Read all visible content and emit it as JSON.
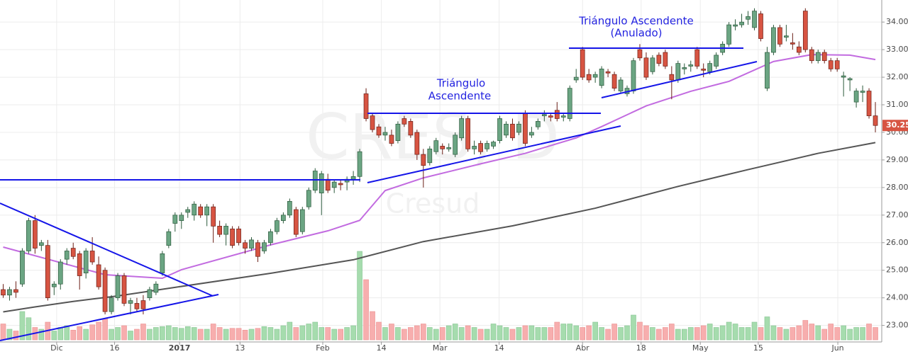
{
  "chart_data": {
    "type": "candlestick",
    "watermark": {
      "symbol": "CRES, D",
      "name": "Cresud"
    },
    "annotations": [
      [
        "Triángulo",
        "Ascendente"
      ],
      [
        "Triángulo Ascendente",
        "(Anulado)"
      ]
    ],
    "ylim": [
      22.4,
      34.8
    ],
    "yticks": [
      {
        "value": 23,
        "label": "23.00"
      },
      {
        "value": 24,
        "label": "24.00"
      },
      {
        "value": 25,
        "label": "25.00"
      },
      {
        "value": 26,
        "label": "26.00"
      },
      {
        "value": 27,
        "label": "27.00"
      },
      {
        "value": 28,
        "label": "28.00"
      },
      {
        "value": 29,
        "label": "29.00"
      },
      {
        "value": 30,
        "label": "30.00"
      },
      {
        "value": 31,
        "label": "31.00"
      },
      {
        "value": 32,
        "label": "32.00"
      },
      {
        "value": 33,
        "label": "33.00"
      },
      {
        "value": 34,
        "label": "34.00"
      }
    ],
    "xlim": [
      -0.5,
      138
    ],
    "xticks": [
      {
        "value": 8.4,
        "label": "Dic"
      },
      {
        "value": 17.5,
        "label": "16"
      },
      {
        "value": 27.7,
        "label": "2017"
      },
      {
        "value": 37.2,
        "label": "13"
      },
      {
        "value": 50.2,
        "label": "Feb"
      },
      {
        "value": 59.4,
        "label": "14"
      },
      {
        "value": 68.6,
        "label": "Mar"
      },
      {
        "value": 77.9,
        "label": "14"
      },
      {
        "value": 91,
        "label": "Abr"
      },
      {
        "value": 100.2,
        "label": "18"
      },
      {
        "value": 109.5,
        "label": "May"
      },
      {
        "value": 118.6,
        "label": "15"
      },
      {
        "value": 131.1,
        "label": "Jun"
      }
    ],
    "grid": true,
    "up_color": "#6ba583",
    "down_color": "#d75442",
    "last_price": 30.25,
    "ohlc": [
      [
        24.3,
        24.5,
        24.0,
        24.1
      ],
      [
        24.1,
        24.4,
        23.9,
        24.3
      ],
      [
        24.3,
        24.6,
        24.0,
        24.2
      ],
      [
        24.5,
        25.8,
        24.4,
        25.7
      ],
      [
        25.7,
        26.9,
        25.6,
        26.8
      ],
      [
        26.8,
        27.0,
        25.6,
        25.8
      ],
      [
        25.9,
        26.1,
        25.7,
        26.0
      ],
      [
        25.9,
        26.1,
        23.9,
        24.0
      ],
      [
        24.4,
        24.6,
        24.1,
        24.5
      ],
      [
        24.5,
        25.4,
        24.3,
        25.3
      ],
      [
        25.4,
        25.8,
        25.2,
        25.7
      ],
      [
        25.8,
        26.0,
        25.4,
        25.5
      ],
      [
        25.6,
        25.7,
        24.3,
        24.8
      ],
      [
        24.9,
        25.8,
        24.7,
        25.7
      ],
      [
        25.7,
        26.2,
        25.2,
        25.3
      ],
      [
        25.2,
        25.5,
        24.3,
        24.4
      ],
      [
        25.0,
        25.1,
        23.4,
        23.5
      ],
      [
        23.5,
        24.1,
        23.4,
        24.0
      ],
      [
        24.0,
        24.9,
        23.9,
        24.8
      ],
      [
        24.8,
        24.9,
        23.7,
        23.8
      ],
      [
        23.8,
        24.0,
        23.4,
        23.9
      ],
      [
        23.8,
        24.0,
        23.5,
        23.6
      ],
      [
        23.9,
        24.1,
        23.4,
        23.6
      ],
      [
        24.0,
        24.4,
        23.9,
        24.3
      ],
      [
        24.2,
        24.6,
        24.1,
        24.5
      ],
      [
        24.9,
        25.7,
        24.8,
        25.6
      ],
      [
        25.9,
        26.5,
        25.8,
        26.4
      ],
      [
        26.7,
        27.1,
        26.4,
        27.0
      ],
      [
        26.8,
        27.1,
        26.5,
        27.0
      ],
      [
        27.1,
        27.3,
        26.9,
        27.2
      ],
      [
        27.0,
        27.5,
        26.8,
        27.4
      ],
      [
        27.3,
        27.4,
        26.9,
        27.0
      ],
      [
        27.0,
        27.4,
        26.6,
        27.3
      ],
      [
        27.3,
        27.4,
        26.0,
        26.6
      ],
      [
        26.6,
        26.8,
        26.2,
        26.3
      ],
      [
        26.3,
        26.7,
        25.9,
        26.6
      ],
      [
        26.5,
        26.6,
        25.8,
        25.9
      ],
      [
        26.5,
        26.6,
        25.9,
        26.0
      ],
      [
        26.0,
        26.1,
        25.6,
        25.8
      ],
      [
        25.8,
        26.2,
        25.7,
        26.1
      ],
      [
        26.0,
        26.1,
        25.3,
        25.5
      ],
      [
        25.7,
        26.1,
        25.6,
        26.0
      ],
      [
        26.0,
        26.5,
        25.9,
        26.4
      ],
      [
        26.4,
        26.9,
        26.3,
        26.8
      ],
      [
        26.8,
        27.1,
        26.7,
        27.0
      ],
      [
        27.0,
        27.6,
        26.9,
        27.5
      ],
      [
        27.2,
        27.3,
        26.2,
        26.3
      ],
      [
        26.4,
        27.3,
        26.3,
        27.2
      ],
      [
        27.3,
        28.0,
        27.2,
        27.9
      ],
      [
        27.9,
        28.7,
        27.8,
        28.6
      ],
      [
        27.8,
        28.6,
        27.0,
        28.5
      ],
      [
        28.3,
        28.5,
        27.8,
        27.9
      ],
      [
        28.0,
        28.3,
        27.8,
        28.2
      ],
      [
        28.15,
        28.3,
        27.9,
        28.1
      ],
      [
        28.2,
        28.4,
        27.9,
        28.3
      ],
      [
        28.3,
        28.6,
        28.1,
        28.4
      ],
      [
        28.4,
        29.4,
        28.2,
        29.3
      ],
      [
        31.4,
        31.6,
        30.4,
        30.5
      ],
      [
        30.6,
        30.7,
        30.0,
        30.1
      ],
      [
        30.2,
        30.3,
        29.8,
        29.9
      ],
      [
        29.9,
        30.2,
        29.7,
        30.0
      ],
      [
        29.9,
        30.1,
        29.5,
        29.6
      ],
      [
        29.7,
        30.4,
        29.6,
        30.3
      ],
      [
        30.5,
        30.6,
        30.2,
        30.3
      ],
      [
        30.4,
        30.5,
        29.8,
        29.9
      ],
      [
        30.0,
        30.1,
        29.0,
        29.2
      ],
      [
        29.2,
        29.4,
        28.0,
        28.8
      ],
      [
        28.9,
        29.5,
        28.8,
        29.4
      ],
      [
        29.3,
        29.8,
        29.2,
        29.7
      ],
      [
        29.5,
        29.6,
        29.2,
        29.4
      ],
      [
        29.4,
        29.6,
        29.3,
        29.45
      ],
      [
        29.2,
        30.0,
        29.1,
        29.9
      ],
      [
        29.8,
        30.6,
        29.7,
        30.5
      ],
      [
        30.5,
        30.6,
        29.3,
        29.4
      ],
      [
        29.4,
        29.7,
        29.2,
        29.5
      ],
      [
        29.6,
        29.7,
        29.2,
        29.3
      ],
      [
        29.4,
        29.7,
        29.3,
        29.6
      ],
      [
        29.5,
        29.7,
        29.4,
        29.65
      ],
      [
        29.7,
        30.6,
        29.6,
        30.5
      ],
      [
        29.9,
        30.4,
        29.8,
        30.3
      ],
      [
        30.3,
        30.5,
        29.7,
        29.8
      ],
      [
        30.0,
        30.4,
        29.9,
        30.3
      ],
      [
        30.7,
        30.8,
        29.5,
        29.6
      ],
      [
        29.9,
        30.2,
        29.8,
        30.0
      ],
      [
        30.2,
        30.5,
        30.1,
        30.4
      ],
      [
        30.6,
        30.8,
        30.4,
        30.65
      ],
      [
        30.6,
        30.7,
        30.4,
        30.55
      ],
      [
        30.8,
        31.1,
        30.4,
        30.5
      ],
      [
        30.55,
        30.7,
        30.4,
        30.6
      ],
      [
        30.5,
        31.7,
        30.4,
        31.6
      ],
      [
        31.9,
        32.3,
        31.8,
        32.0
      ],
      [
        33.0,
        33.1,
        31.9,
        32.0
      ],
      [
        32.1,
        32.3,
        31.8,
        31.9
      ],
      [
        32.0,
        32.2,
        31.8,
        32.1
      ],
      [
        31.7,
        32.4,
        31.6,
        32.3
      ],
      [
        32.2,
        32.3,
        32.0,
        32.15
      ],
      [
        32.1,
        32.2,
        31.5,
        31.6
      ],
      [
        31.5,
        32.0,
        31.4,
        31.9
      ],
      [
        31.4,
        31.7,
        31.3,
        31.6
      ],
      [
        31.5,
        32.7,
        31.4,
        32.6
      ],
      [
        33.0,
        33.2,
        32.6,
        32.7
      ],
      [
        32.7,
        32.9,
        31.9,
        32.0
      ],
      [
        32.2,
        32.8,
        32.1,
        32.7
      ],
      [
        32.8,
        32.9,
        32.4,
        32.5
      ],
      [
        32.9,
        33.0,
        32.3,
        32.4
      ],
      [
        32.1,
        32.4,
        31.2,
        31.9
      ],
      [
        31.9,
        32.6,
        31.8,
        32.5
      ],
      [
        32.3,
        32.5,
        32.1,
        32.35
      ],
      [
        32.4,
        32.6,
        32.2,
        32.45
      ],
      [
        33.0,
        33.1,
        32.3,
        32.4
      ],
      [
        32.3,
        32.5,
        32.0,
        32.25
      ],
      [
        32.2,
        32.6,
        32.1,
        32.5
      ],
      [
        32.4,
        32.9,
        32.3,
        32.8
      ],
      [
        32.9,
        33.3,
        32.8,
        33.2
      ],
      [
        33.2,
        34.0,
        33.1,
        33.9
      ],
      [
        33.85,
        34.1,
        33.7,
        33.9
      ],
      [
        33.9,
        34.3,
        33.8,
        34.0
      ],
      [
        34.1,
        34.4,
        33.9,
        34.2
      ],
      [
        33.8,
        34.5,
        33.7,
        34.4
      ],
      [
        34.3,
        34.4,
        33.3,
        33.4
      ],
      [
        31.6,
        33.1,
        31.5,
        32.9
      ],
      [
        32.9,
        33.9,
        32.8,
        33.8
      ],
      [
        33.8,
        33.9,
        33.1,
        33.2
      ],
      [
        33.45,
        33.9,
        33.3,
        33.5
      ],
      [
        33.25,
        33.6,
        33.0,
        33.2
      ],
      [
        33.1,
        33.3,
        32.8,
        32.9
      ],
      [
        34.4,
        34.5,
        32.9,
        33.0
      ],
      [
        33.0,
        33.1,
        32.5,
        32.6
      ],
      [
        32.6,
        33.0,
        32.5,
        32.9
      ],
      [
        32.9,
        33.0,
        32.5,
        32.6
      ],
      [
        32.6,
        32.7,
        32.2,
        32.3
      ],
      [
        32.6,
        32.7,
        32.2,
        32.3
      ],
      [
        32.0,
        32.2,
        31.3,
        32.05
      ],
      [
        31.9,
        32.0,
        31.5,
        31.95
      ],
      [
        31.1,
        31.6,
        30.9,
        31.5
      ],
      [
        31.45,
        31.7,
        31.1,
        31.5
      ],
      [
        31.5,
        31.6,
        30.5,
        30.6
      ],
      [
        30.6,
        31.1,
        30.0,
        30.25
      ]
    ],
    "volume_lim": [
      0,
      100
    ],
    "volumes": [
      18,
      12,
      10,
      32,
      25,
      14,
      12,
      20,
      10,
      14,
      16,
      11,
      15,
      12,
      17,
      20,
      24,
      12,
      14,
      16,
      10,
      12,
      18,
      12,
      14,
      15,
      16,
      14,
      13,
      15,
      14,
      12,
      12,
      18,
      14,
      12,
      13,
      13,
      11,
      12,
      13,
      15,
      14,
      12,
      16,
      20,
      14,
      16,
      18,
      20,
      14,
      14,
      12,
      12,
      14,
      16,
      100,
      68,
      32,
      20,
      14,
      18,
      14,
      12,
      14,
      16,
      18,
      14,
      12,
      14,
      16,
      18,
      14,
      16,
      14,
      12,
      12,
      18,
      16,
      14,
      12,
      14,
      16,
      16,
      14,
      14,
      14,
      20,
      18,
      18,
      16,
      14,
      16,
      20,
      14,
      12,
      18,
      14,
      16,
      28,
      20,
      16,
      14,
      12,
      14,
      18,
      12,
      12,
      14,
      14,
      16,
      18,
      14,
      16,
      20,
      18,
      14,
      14,
      20,
      14,
      26,
      16,
      14,
      12,
      14,
      16,
      22,
      18,
      16,
      12,
      18,
      14,
      16,
      12,
      14,
      14,
      18,
      14
    ],
    "lines": [
      {
        "color": "#c26be0",
        "x": [
          0,
          16,
          25,
          28,
          42,
          51,
          56,
          60,
          66,
          75,
          82,
          90,
          94,
          101,
          108,
          114,
          121,
          127,
          133,
          137
        ],
        "values": [
          25.84,
          24.84,
          24.71,
          25.02,
          25.92,
          26.43,
          26.81,
          27.89,
          28.35,
          28.86,
          29.24,
          29.8,
          30.21,
          30.96,
          31.49,
          31.85,
          32.57,
          32.82,
          32.8,
          32.64
        ]
      },
      {
        "color": "#555555",
        "x": [
          0,
          5,
          11,
          18,
          27,
          42,
          55,
          66,
          80,
          93,
          106,
          117,
          128,
          137
        ],
        "values": [
          23.49,
          23.67,
          23.87,
          24.07,
          24.38,
          24.89,
          25.38,
          26.04,
          26.61,
          27.25,
          28.04,
          28.65,
          29.24,
          29.63
        ]
      }
    ]
  }
}
